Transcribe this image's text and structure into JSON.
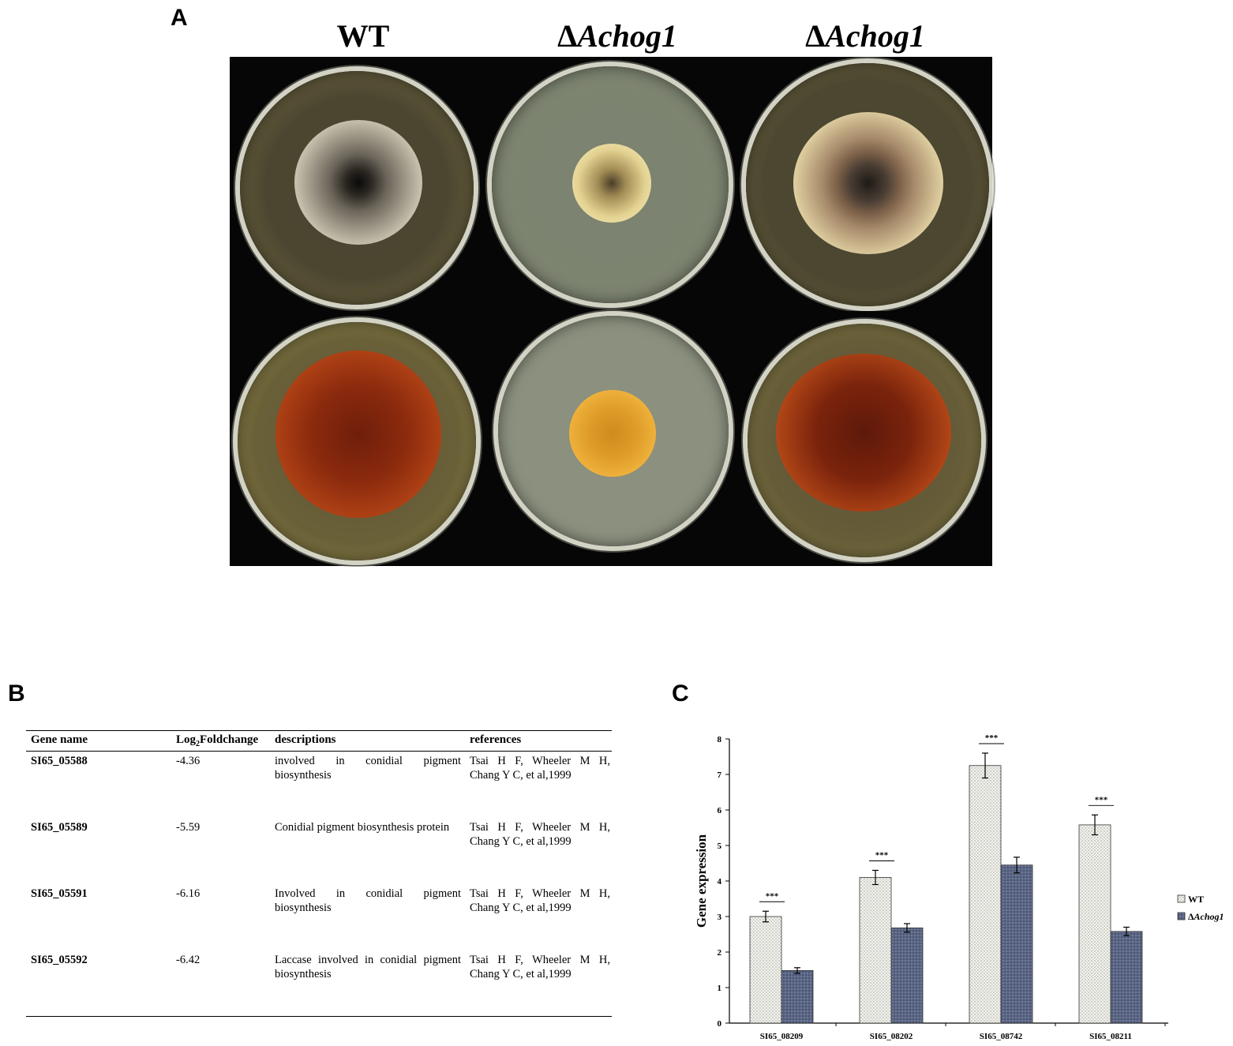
{
  "panels": {
    "a_label": "A",
    "b_label": "B",
    "c_label": "C"
  },
  "photo": {
    "columns": [
      {
        "prefix": "",
        "name": "WT",
        "italic": false
      },
      {
        "prefix": "Δ",
        "name": "Achog1",
        "italic": true
      },
      {
        "prefix": "Δ",
        "name": "Achog1",
        "italic": true
      }
    ]
  },
  "table": {
    "headers": {
      "gene": "Gene name",
      "log_prefix": "Log",
      "log_sub": "2",
      "log_suffix": "Foldchange",
      "desc": "descriptions",
      "ref": "references"
    },
    "rows": [
      {
        "gene": "SI65_05588",
        "fold": "-4.36",
        "desc": "involved in conidial pigment biosynthesis",
        "ref": "Tsai H F, Wheeler M H, Chang Y C, et al,1999"
      },
      {
        "gene": "SI65_05589",
        "fold": "-5.59",
        "desc": "Conidial pigment biosynthesis protein",
        "ref": "Tsai H F, Wheeler M H, Chang Y C, et al,1999"
      },
      {
        "gene": "SI65_05591",
        "fold": "-6.16",
        "desc": "Involved in conidial pigment biosynthesis",
        "ref": "Tsai H F, Wheeler M H, Chang Y C, et al,1999"
      },
      {
        "gene": "SI65_05592",
        "fold": "-6.42",
        "desc": "Laccase involved in conidial pigment biosynthesis",
        "ref": "Tsai H F, Wheeler M H, Chang Y C, et al,1999"
      }
    ]
  },
  "chart_data": {
    "type": "bar",
    "categories": [
      "SI65_08209",
      "SI65_08202",
      "SI65_08742",
      "SI65_08211"
    ],
    "series": [
      {
        "name": "WT",
        "values": [
          3.0,
          4.1,
          7.25,
          5.58
        ],
        "errors": [
          0.15,
          0.2,
          0.35,
          0.28
        ],
        "color": "#e9e9e3"
      },
      {
        "name": "ΔAchog1",
        "values": [
          1.48,
          2.68,
          4.45,
          2.58
        ],
        "errors": [
          0.08,
          0.12,
          0.22,
          0.12
        ],
        "color": "#5f6b86"
      }
    ],
    "significance": [
      "***",
      "***",
      "***",
      "***"
    ],
    "ylabel": "Gene expression",
    "xlabel": "",
    "ylim": [
      0,
      8
    ],
    "yticks": [
      "0",
      "1",
      "2",
      "3",
      "4",
      "5",
      "6",
      "7",
      "8"
    ],
    "legend": "right",
    "legend_entries": [
      {
        "prefix": "",
        "name": "WT",
        "italic": false
      },
      {
        "prefix": "Δ",
        "name": "Achog1",
        "italic": true
      }
    ],
    "grid": false
  }
}
